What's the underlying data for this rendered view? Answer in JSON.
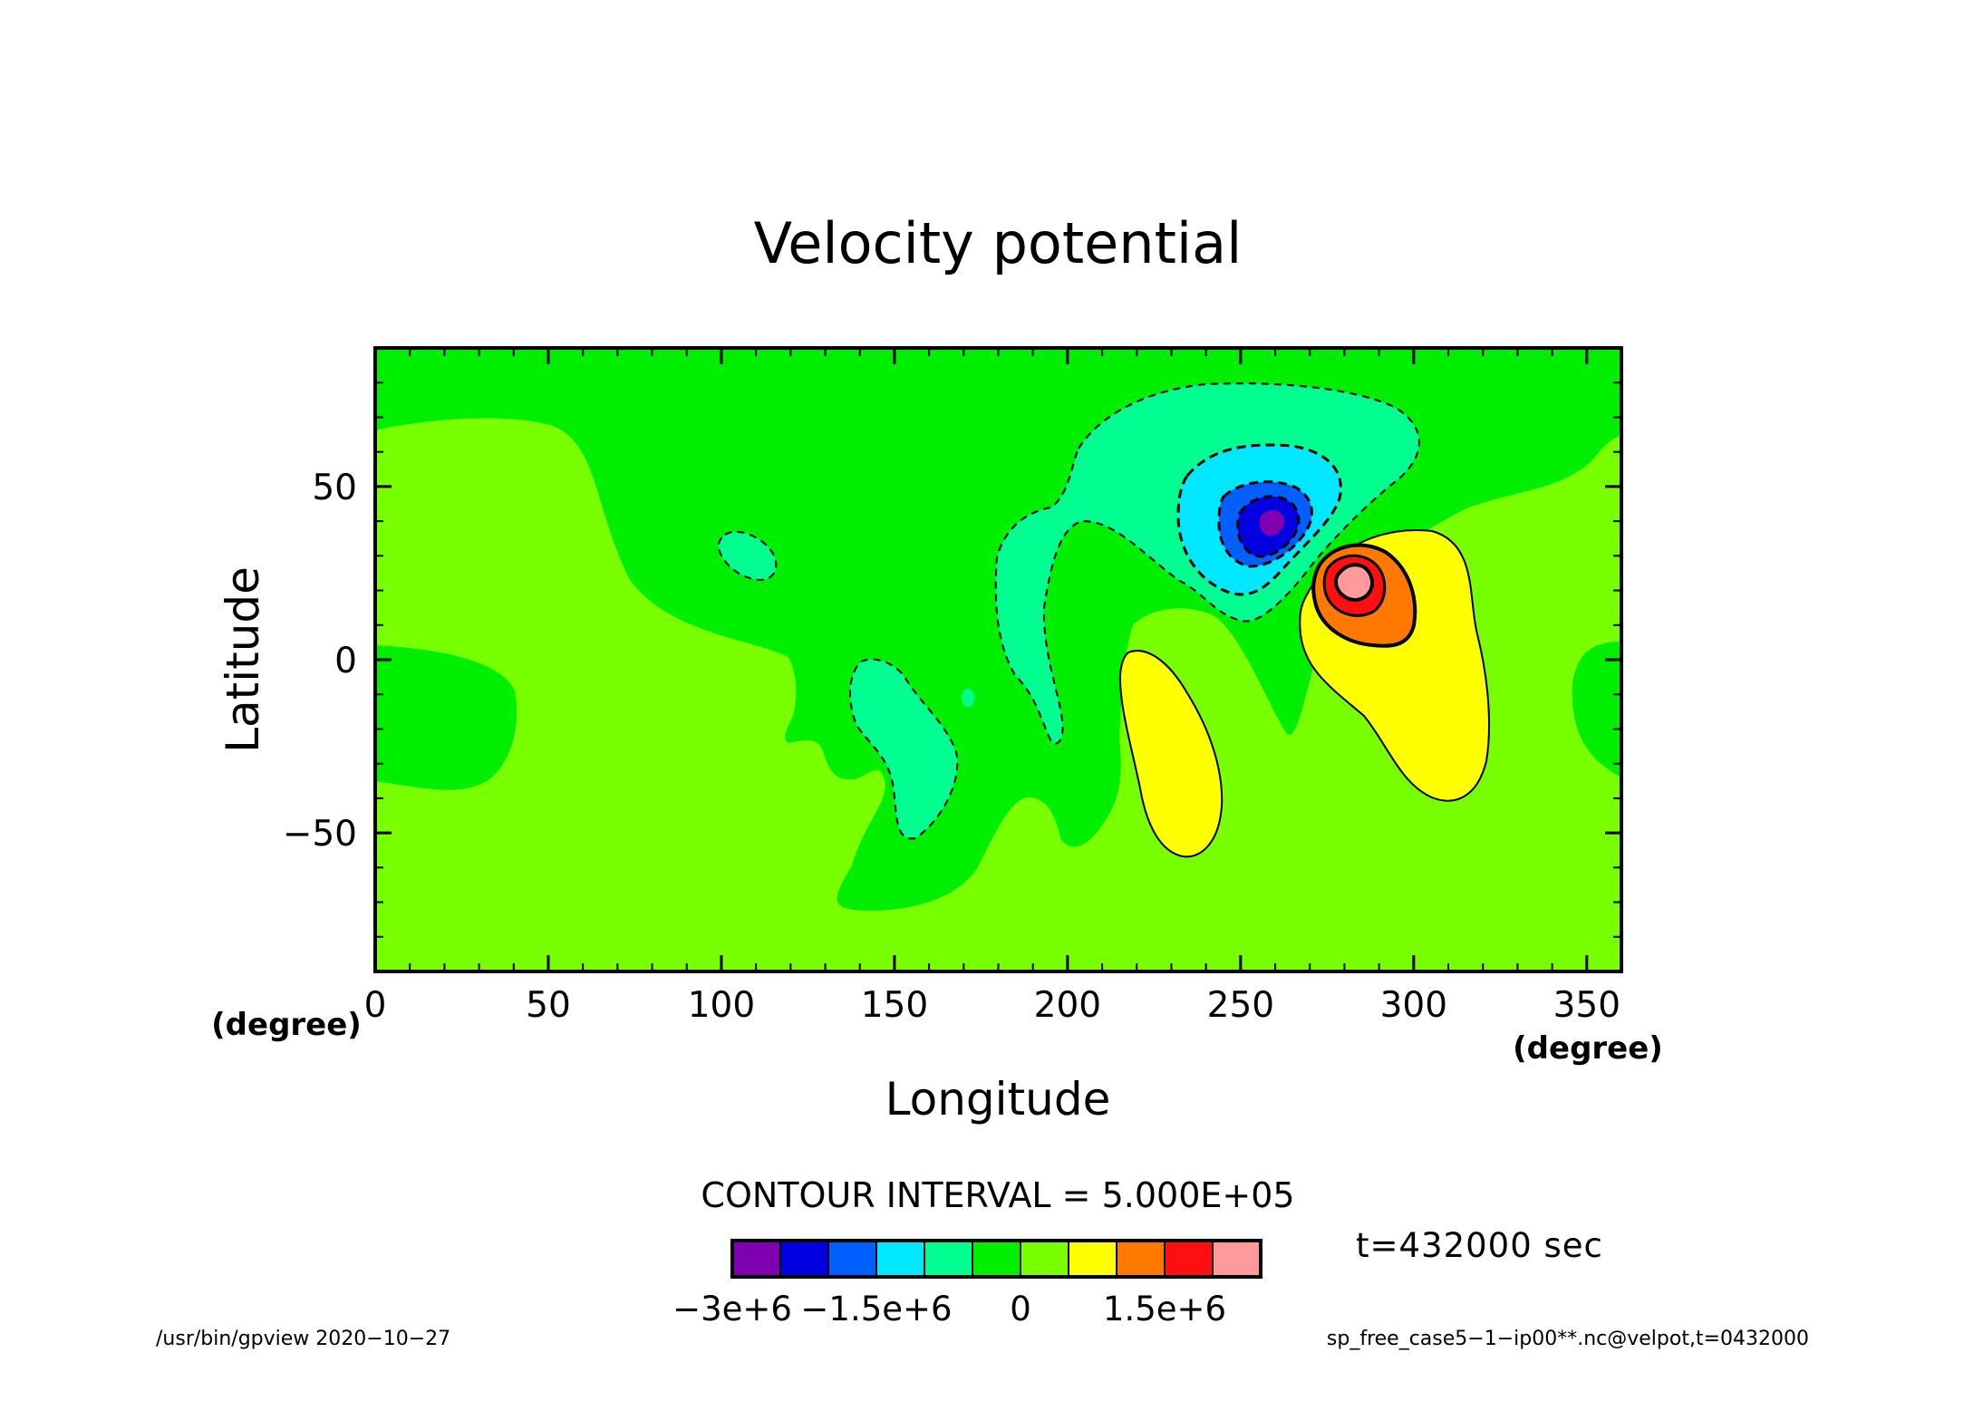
{
  "chart_data": {
    "type": "heatmap",
    "title": "Velocity potential",
    "xlabel": "Longitude",
    "ylabel": "Latitude",
    "x_unit": "(degree)",
    "y_unit": "(degree)",
    "xlim": [
      0,
      360
    ],
    "ylim": [
      -90,
      90
    ],
    "x_ticks": [
      0,
      50,
      100,
      150,
      200,
      250,
      300,
      350
    ],
    "x_tick_labels": [
      "0",
      "50",
      "100",
      "150",
      "200",
      "250",
      "300",
      "350"
    ],
    "y_ticks": [
      -50,
      0,
      50
    ],
    "y_tick_labels": [
      "−50",
      "0",
      "50"
    ],
    "contour_interval_label": "CONTOUR INTERVAL = 5.000E+05",
    "contour_interval": 500000,
    "colorbar": {
      "levels": [
        -3000000,
        -2500000,
        -2000000,
        -1500000,
        -1000000,
        -500000,
        0,
        500000,
        1000000,
        1500000,
        2000000,
        2500000
      ],
      "colors": [
        "#7f00b0",
        "#0000e0",
        "#0060ff",
        "#00e8ff",
        "#00ff90",
        "#00ee00",
        "#78ff00",
        "#ffff00",
        "#ff7800",
        "#ff1010",
        "#ff9a9a"
      ],
      "tick_labels": [
        "−3e+6",
        "−1.5e+6",
        "0",
        "1.5e+6"
      ],
      "tick_values": [
        -3000000,
        -1500000,
        0,
        1500000
      ]
    },
    "background_level_color": "#00ee00",
    "regions": [
      {
        "value_range": [
          0,
          500000
        ],
        "color": "#78ff00",
        "center": [
          40,
          60
        ]
      },
      {
        "value_range": [
          0,
          500000
        ],
        "color": "#78ff00",
        "center": [
          90,
          -45
        ]
      },
      {
        "value_range": [
          -1000000,
          -500000
        ],
        "color": "#00ff90",
        "center": [
          225,
          50
        ]
      },
      {
        "value_range": [
          -1500000,
          -1000000
        ],
        "color": "#00e8ff",
        "center": [
          253,
          42
        ]
      },
      {
        "value_range": [
          -2000000,
          -1500000
        ],
        "color": "#0060ff",
        "center": [
          256,
          40
        ]
      },
      {
        "value_range": [
          -2500000,
          -2000000
        ],
        "color": "#0000e0",
        "center": [
          258,
          39
        ]
      },
      {
        "value_range": [
          -3000000,
          -2500000
        ],
        "color": "#7f00b0",
        "center": [
          260,
          39
        ]
      },
      {
        "value_range": [
          500000,
          1000000
        ],
        "color": "#ffff00",
        "center": [
          300,
          -5
        ]
      },
      {
        "value_range": [
          500000,
          1000000
        ],
        "color": "#ffff00",
        "center": [
          228,
          -28
        ]
      },
      {
        "value_range": [
          1000000,
          1500000
        ],
        "color": "#ff7800",
        "center": [
          283,
          22
        ]
      },
      {
        "value_range": [
          1500000,
          2000000
        ],
        "color": "#ff1010",
        "center": [
          281,
          22
        ]
      },
      {
        "value_range": [
          2000000,
          2500000
        ],
        "color": "#ff9a9a",
        "center": [
          281,
          22
        ]
      }
    ]
  },
  "annotations": {
    "time_label": "t=432000 sec",
    "footer_left": "/usr/bin/gpview   2020−10−27",
    "footer_right": "sp_free_case5−1−ip00**.nc@velpot,t=0432000"
  }
}
